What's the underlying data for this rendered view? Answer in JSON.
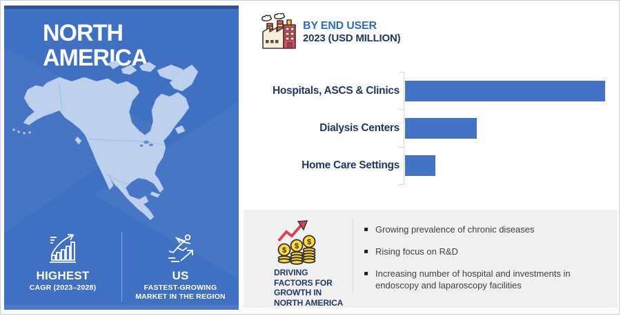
{
  "page": {
    "background": "#ffffff",
    "border": "#c9cdd4"
  },
  "left_panel": {
    "title_line1": "NORTH",
    "title_line2": "AMERICA",
    "colors": {
      "background": "#3f70c2",
      "map_fill": "#bdd0ee"
    },
    "stats": [
      {
        "icon": "growth-bar-chart-icon",
        "title": "HIGHEST",
        "subtitle": "CAGR (2023–2028)"
      },
      {
        "icon": "sprinting-person-icon",
        "title": "US",
        "subtitle": "FASTEST-GROWING MARKET IN THE REGION"
      }
    ]
  },
  "chart_data": {
    "type": "bar",
    "orientation": "horizontal",
    "title": "BY END USER",
    "subtitle": "2023 (USD MILLION)",
    "header_icon": "factory-icon",
    "categories": [
      "Hospitals, ASCS & Clinics",
      "Dialysis Centers",
      "Home Care Settings"
    ],
    "values": [
      100,
      36,
      15
    ],
    "value_note": "Bars carry no numeric labels; values are relative lengths as percent of the longest bar.",
    "bar_color": "#4472c4",
    "axis_color": "#d9d9d9",
    "grid": false,
    "legend": "none"
  },
  "driving_factors": {
    "icon": "coin-stacks-growth-icon",
    "label": "DRIVING FACTORS FOR GROWTH IN NORTH AMERICA",
    "bullets": [
      "Growing prevalence of chronic diseases",
      "Rising focus on R&D",
      "Increasing number of hospital and investments in endoscopy and laparoscopy facilities"
    ]
  }
}
